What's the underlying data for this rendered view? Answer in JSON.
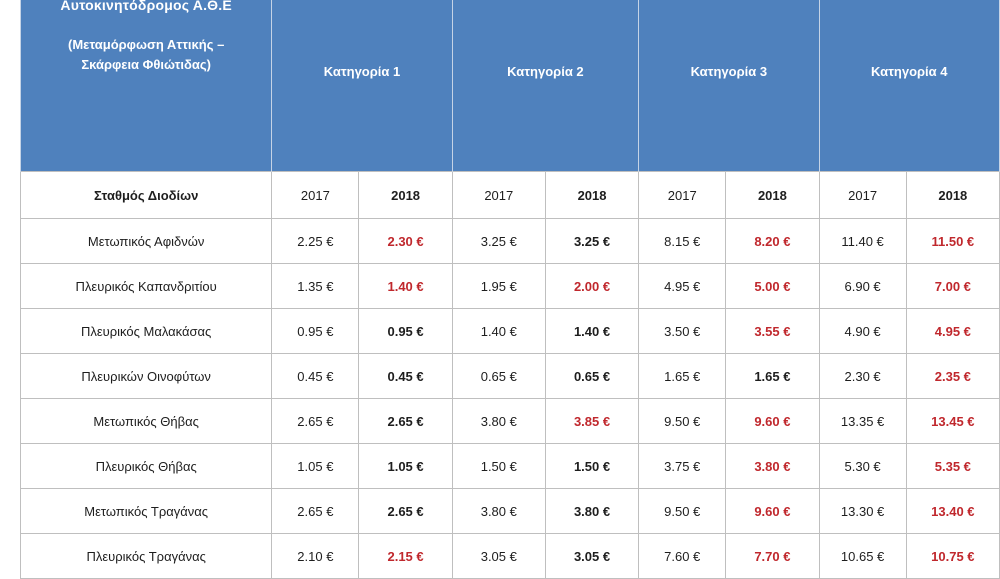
{
  "header": {
    "title": "Αυτοκινητόδρομος Α.Θ.Ε",
    "subtitle_line1": "(Μεταμόρφωση Αττικής –",
    "subtitle_line2": "Σκάρφεια Φθιώτιδας)",
    "categories": [
      "Κατηγορία  1",
      "Κατηγορία 2",
      "Κατηγορία 3",
      "Κατηγορία 4"
    ]
  },
  "year_row": {
    "station_label": "Σταθμός Διοδίων",
    "year_old": "2017",
    "year_new": "2018"
  },
  "colors": {
    "header_bg": "#4f81bd",
    "increase_text": "#c0282d"
  },
  "rows": [
    {
      "station": "Μετωπικός Αφιδνών",
      "values": [
        {
          "y2017": "2.25 €",
          "y2018": "2.30 €",
          "changed": true
        },
        {
          "y2017": "3.25 €",
          "y2018": "3.25 €",
          "changed": false
        },
        {
          "y2017": "8.15 €",
          "y2018": "8.20 €",
          "changed": true
        },
        {
          "y2017": "11.40 €",
          "y2018": "11.50 €",
          "changed": true
        }
      ]
    },
    {
      "station": "Πλευρικός Καπανδριτίου",
      "values": [
        {
          "y2017": "1.35 €",
          "y2018": "1.40 €",
          "changed": true
        },
        {
          "y2017": "1.95 €",
          "y2018": "2.00 €",
          "changed": true
        },
        {
          "y2017": "4.95 €",
          "y2018": "5.00 €",
          "changed": true
        },
        {
          "y2017": "6.90 €",
          "y2018": "7.00 €",
          "changed": true
        }
      ]
    },
    {
      "station": "Πλευρικός Μαλακάσας",
      "values": [
        {
          "y2017": "0.95 €",
          "y2018": "0.95 €",
          "changed": false
        },
        {
          "y2017": "1.40 €",
          "y2018": "1.40 €",
          "changed": false
        },
        {
          "y2017": "3.50 €",
          "y2018": "3.55 €",
          "changed": true
        },
        {
          "y2017": "4.90 €",
          "y2018": "4.95 €",
          "changed": true
        }
      ]
    },
    {
      "station": "Πλευρικών Οινοφύτων",
      "values": [
        {
          "y2017": "0.45 €",
          "y2018": "0.45 €",
          "changed": false
        },
        {
          "y2017": "0.65 €",
          "y2018": "0.65 €",
          "changed": false
        },
        {
          "y2017": "1.65 €",
          "y2018": "1.65 €",
          "changed": false
        },
        {
          "y2017": "2.30 €",
          "y2018": "2.35 €",
          "changed": true
        }
      ]
    },
    {
      "station": "Μετωπικός Θήβας",
      "values": [
        {
          "y2017": "2.65 €",
          "y2018": "2.65 €",
          "changed": false
        },
        {
          "y2017": "3.80 €",
          "y2018": "3.85 €",
          "changed": true
        },
        {
          "y2017": "9.50 €",
          "y2018": "9.60 €",
          "changed": true
        },
        {
          "y2017": "13.35 €",
          "y2018": "13.45 €",
          "changed": true
        }
      ]
    },
    {
      "station": "Πλευρικός Θήβας",
      "values": [
        {
          "y2017": "1.05 €",
          "y2018": "1.05 €",
          "changed": false
        },
        {
          "y2017": "1.50 €",
          "y2018": "1.50 €",
          "changed": false
        },
        {
          "y2017": "3.75 €",
          "y2018": "3.80 €",
          "changed": true
        },
        {
          "y2017": "5.30 €",
          "y2018": "5.35 €",
          "changed": true
        }
      ]
    },
    {
      "station": "Μετωπικός Τραγάνας",
      "values": [
        {
          "y2017": "2.65 €",
          "y2018": "2.65 €",
          "changed": false
        },
        {
          "y2017": "3.80 €",
          "y2018": "3.80 €",
          "changed": false
        },
        {
          "y2017": "9.50 €",
          "y2018": "9.60 €",
          "changed": true
        },
        {
          "y2017": "13.30 €",
          "y2018": "13.40 €",
          "changed": true
        }
      ]
    },
    {
      "station": "Πλευρικός Τραγάνας",
      "values": [
        {
          "y2017": "2.10 €",
          "y2018": "2.15 €",
          "changed": true
        },
        {
          "y2017": "3.05 €",
          "y2018": "3.05 €",
          "changed": false
        },
        {
          "y2017": "7.60 €",
          "y2018": "7.70 €",
          "changed": true
        },
        {
          "y2017": "10.65 €",
          "y2018": "10.75 €",
          "changed": true
        }
      ]
    }
  ]
}
